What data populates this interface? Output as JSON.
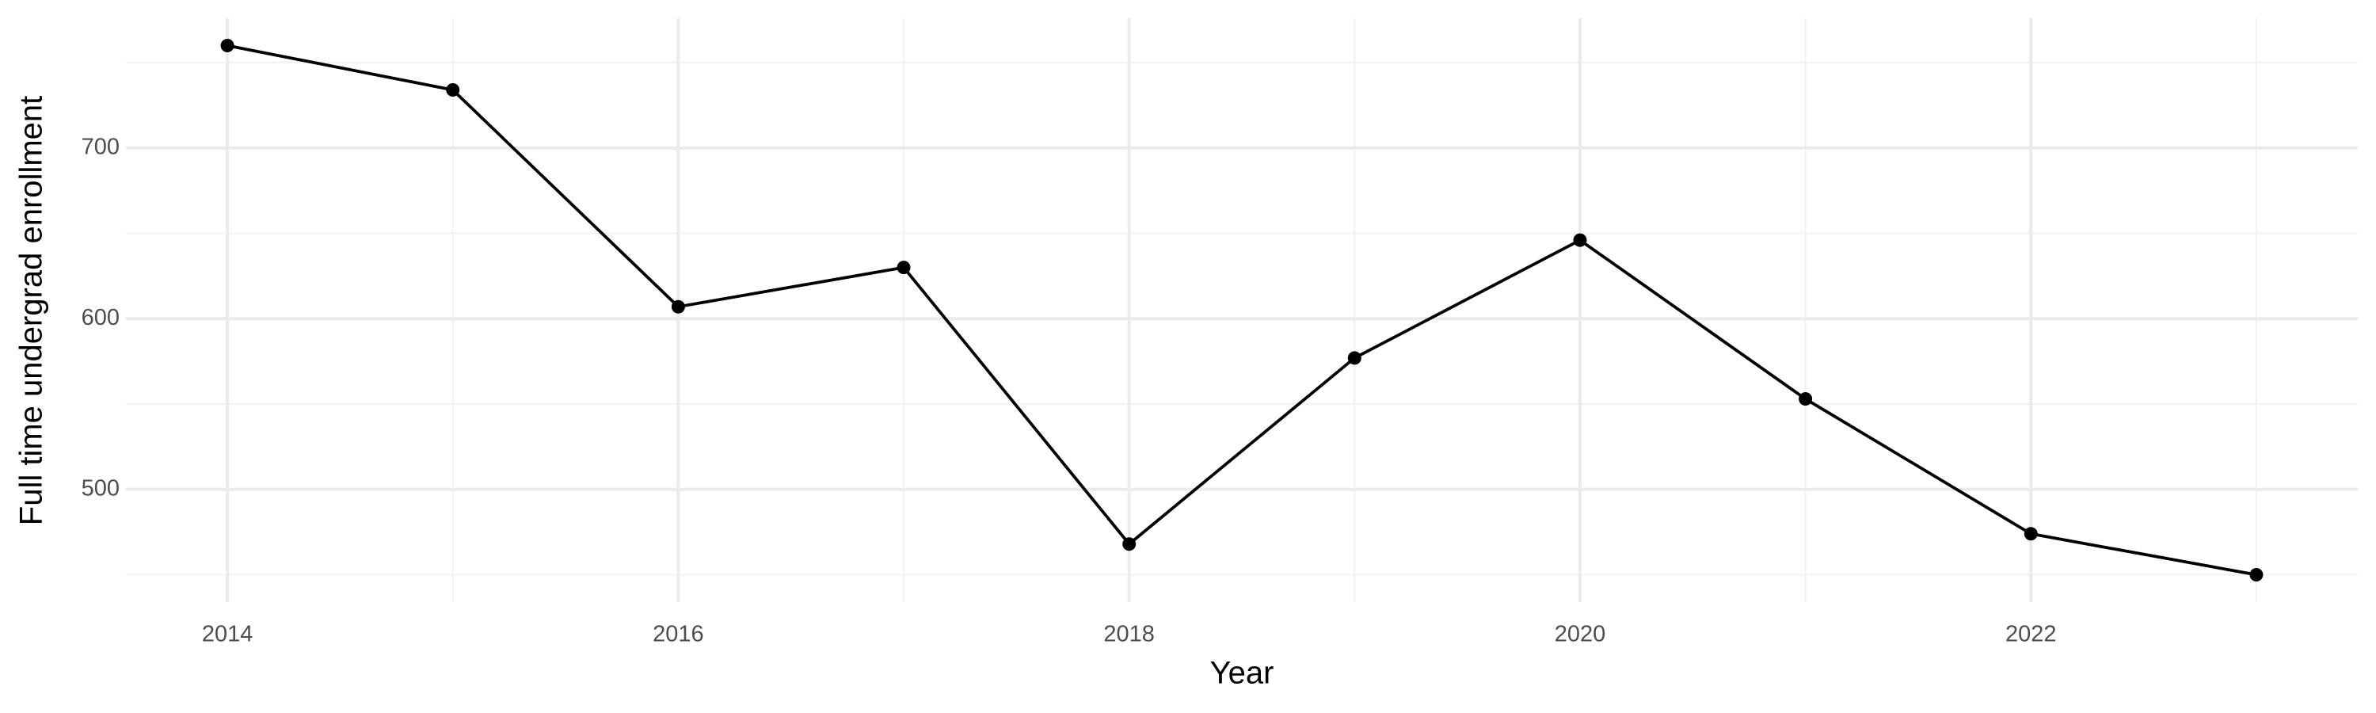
{
  "chart_data": {
    "type": "line",
    "x_label": "Year",
    "y_label": "Full time undergrad enrollment",
    "x": [
      2014,
      2015,
      2016,
      2017,
      2018,
      2019,
      2020,
      2021,
      2022,
      2023
    ],
    "series": [
      {
        "color": "#000000",
        "values": [
          760,
          734,
          607,
          630,
          468,
          577,
          646,
          553,
          474,
          450
        ]
      }
    ],
    "xlim": [
      2013.55,
      2023.45
    ],
    "xticks": [
      2014,
      2016,
      2018,
      2020,
      2022
    ],
    "xminor": [
      2015,
      2017,
      2019,
      2021,
      2023
    ],
    "ylim": [
      434,
      776
    ],
    "yticks": [
      500,
      600,
      700
    ],
    "yminor": [
      450,
      550,
      650,
      750
    ],
    "grid": true
  }
}
